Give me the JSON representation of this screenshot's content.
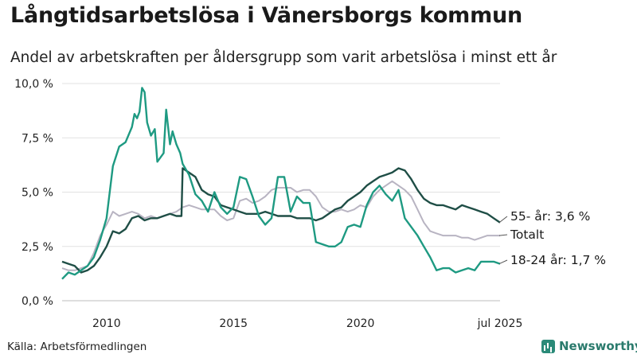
{
  "title": "Långtidsarbetslösa i Vänersborgs kommun",
  "subtitle": "Andel av arbetskraften per åldersgrupp som varit arbetslösa i minst ett år",
  "source": "Källa: Arbetsförmedlingen",
  "brand": "Newsworthy",
  "chart_data": {
    "type": "line",
    "x_start": 2008.25,
    "x_end": 2025.5,
    "ylim": [
      0,
      10
    ],
    "yticks": [
      0,
      2.5,
      5,
      7.5,
      10
    ],
    "ytick_labels": [
      "0,0 %",
      "2,5 %",
      "5,0 %",
      "7,5 %",
      "10,0 %"
    ],
    "xticks": [
      2010,
      2015,
      2020,
      2025.5
    ],
    "xtick_labels": [
      "2010",
      "2015",
      "2020",
      "jul 2025"
    ],
    "grid": true,
    "series": [
      {
        "name": "Totalt",
        "label": "Totalt",
        "color": "#b8b4c2",
        "x": [
          2008.25,
          2008.5,
          2008.75,
          2009.0,
          2009.25,
          2009.5,
          2009.75,
          2010.0,
          2010.25,
          2010.5,
          2010.75,
          2011.0,
          2011.25,
          2011.5,
          2011.75,
          2012.0,
          2012.25,
          2012.5,
          2012.75,
          2013.0,
          2013.25,
          2013.5,
          2013.75,
          2014.0,
          2014.25,
          2014.5,
          2014.75,
          2015.0,
          2015.25,
          2015.5,
          2015.75,
          2016.0,
          2016.25,
          2016.5,
          2016.75,
          2017.0,
          2017.25,
          2017.5,
          2017.75,
          2018.0,
          2018.25,
          2018.5,
          2018.75,
          2019.0,
          2019.25,
          2019.5,
          2019.75,
          2020.0,
          2020.25,
          2020.5,
          2020.75,
          2021.0,
          2021.25,
          2021.5,
          2021.75,
          2022.0,
          2022.25,
          2022.5,
          2022.75,
          2023.0,
          2023.25,
          2023.5,
          2023.75,
          2024.0,
          2024.25,
          2024.5,
          2024.75,
          2025.0,
          2025.25,
          2025.5
        ],
        "values": [
          1.5,
          1.4,
          1.4,
          1.5,
          1.6,
          2.2,
          3.0,
          3.5,
          4.1,
          3.9,
          4.0,
          4.1,
          4.0,
          3.8,
          3.9,
          3.8,
          3.9,
          4.0,
          4.1,
          4.3,
          4.4,
          4.3,
          4.2,
          4.2,
          4.2,
          3.9,
          3.7,
          3.8,
          4.6,
          4.7,
          4.5,
          4.6,
          4.8,
          5.1,
          5.2,
          5.2,
          5.2,
          5.0,
          5.1,
          5.1,
          4.8,
          4.3,
          4.1,
          4.1,
          4.2,
          4.1,
          4.2,
          4.4,
          4.3,
          4.8,
          5.1,
          5.3,
          5.5,
          5.3,
          5.1,
          4.8,
          4.2,
          3.6,
          3.2,
          3.1,
          3.0,
          3.0,
          3.0,
          2.9,
          2.9,
          2.8,
          2.9,
          3.0,
          3.0,
          3.0
        ]
      },
      {
        "name": "55- år",
        "label": "55- år: 3,6 %",
        "color": "#1f4e46",
        "x": [
          2008.25,
          2008.5,
          2008.75,
          2009.0,
          2009.25,
          2009.5,
          2009.75,
          2010.0,
          2010.25,
          2010.5,
          2010.75,
          2011.0,
          2011.25,
          2011.5,
          2011.75,
          2012.0,
          2012.25,
          2012.5,
          2012.75,
          2012.95,
          2013.0,
          2013.25,
          2013.5,
          2013.75,
          2014.0,
          2014.25,
          2014.5,
          2014.75,
          2015.0,
          2015.25,
          2015.5,
          2015.75,
          2016.0,
          2016.25,
          2016.5,
          2016.75,
          2017.0,
          2017.25,
          2017.5,
          2017.75,
          2018.0,
          2018.25,
          2018.5,
          2018.75,
          2019.0,
          2019.25,
          2019.5,
          2019.75,
          2020.0,
          2020.25,
          2020.5,
          2020.75,
          2021.0,
          2021.25,
          2021.5,
          2021.75,
          2022.0,
          2022.25,
          2022.5,
          2022.75,
          2023.0,
          2023.25,
          2023.5,
          2023.75,
          2024.0,
          2024.25,
          2024.5,
          2024.75,
          2025.0,
          2025.25,
          2025.5
        ],
        "values": [
          1.8,
          1.7,
          1.6,
          1.3,
          1.4,
          1.6,
          2.0,
          2.5,
          3.2,
          3.1,
          3.3,
          3.8,
          3.9,
          3.7,
          3.8,
          3.8,
          3.9,
          4.0,
          3.9,
          3.9,
          6.1,
          5.9,
          5.7,
          5.1,
          4.9,
          4.8,
          4.4,
          4.3,
          4.2,
          4.1,
          4.0,
          4.0,
          4.0,
          4.1,
          4.0,
          3.9,
          3.9,
          3.9,
          3.8,
          3.8,
          3.8,
          3.7,
          3.8,
          4.0,
          4.2,
          4.3,
          4.6,
          4.8,
          5.0,
          5.3,
          5.5,
          5.7,
          5.8,
          5.9,
          6.1,
          6.0,
          5.6,
          5.1,
          4.7,
          4.5,
          4.4,
          4.4,
          4.3,
          4.2,
          4.4,
          4.3,
          4.2,
          4.1,
          4.0,
          3.8,
          3.6
        ]
      },
      {
        "name": "18-24 år",
        "label": "18-24 år: 1,7 %",
        "color": "#1e9a82",
        "x": [
          2008.25,
          2008.5,
          2008.75,
          2009.0,
          2009.25,
          2009.5,
          2009.75,
          2010.0,
          2010.25,
          2010.5,
          2010.75,
          2011.0,
          2011.1,
          2011.2,
          2011.3,
          2011.4,
          2011.5,
          2011.6,
          2011.75,
          2011.9,
          2012.0,
          2012.25,
          2012.35,
          2012.5,
          2012.6,
          2012.75,
          2012.9,
          2013.0,
          2013.25,
          2013.5,
          2013.75,
          2014.0,
          2014.25,
          2014.5,
          2014.75,
          2015.0,
          2015.25,
          2015.5,
          2015.75,
          2016.0,
          2016.25,
          2016.5,
          2016.75,
          2017.0,
          2017.25,
          2017.5,
          2017.75,
          2018.0,
          2018.25,
          2018.5,
          2018.75,
          2019.0,
          2019.25,
          2019.5,
          2019.75,
          2020.0,
          2020.25,
          2020.5,
          2020.75,
          2021.0,
          2021.25,
          2021.5,
          2021.75,
          2022.0,
          2022.25,
          2022.5,
          2022.75,
          2023.0,
          2023.25,
          2023.5,
          2023.75,
          2024.0,
          2024.25,
          2024.5,
          2024.75,
          2025.0,
          2025.25,
          2025.5
        ],
        "values": [
          1.0,
          1.3,
          1.2,
          1.4,
          1.6,
          2.0,
          2.8,
          3.8,
          6.2,
          7.1,
          7.3,
          8.0,
          8.6,
          8.4,
          8.7,
          9.8,
          9.6,
          8.2,
          7.6,
          7.9,
          6.4,
          6.8,
          8.8,
          7.2,
          7.8,
          7.2,
          6.8,
          6.3,
          5.8,
          4.9,
          4.6,
          4.1,
          5.0,
          4.3,
          4.0,
          4.3,
          5.7,
          5.6,
          4.8,
          3.9,
          3.5,
          3.8,
          5.7,
          5.7,
          4.1,
          4.8,
          4.5,
          4.5,
          2.7,
          2.6,
          2.5,
          2.5,
          2.7,
          3.4,
          3.5,
          3.4,
          4.4,
          5.0,
          5.3,
          4.9,
          4.6,
          5.1,
          3.8,
          3.4,
          3.0,
          2.5,
          2.0,
          1.4,
          1.5,
          1.5,
          1.3,
          1.4,
          1.5,
          1.4,
          1.8,
          1.8,
          1.8,
          1.7
        ]
      }
    ]
  }
}
